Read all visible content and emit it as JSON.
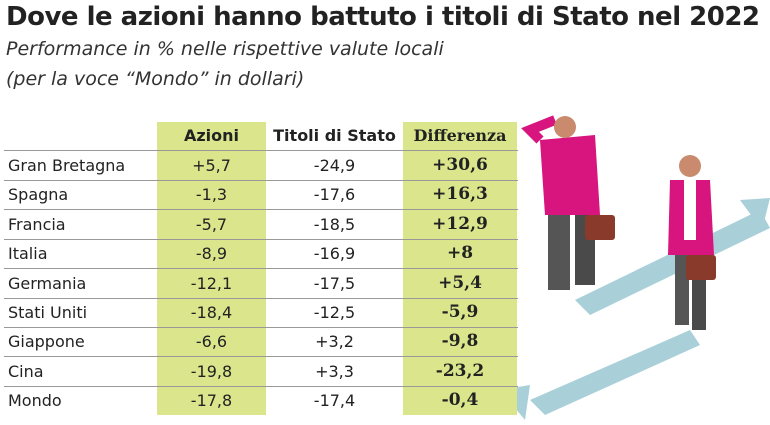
{
  "header": {
    "title": "Dove le azioni hanno battuto i titoli di Stato nel 2022",
    "subtitle_lines": [
      "Performance in % nelle rispettive valute locali",
      "(per la voce “Mondo” in dollari)"
    ]
  },
  "table": {
    "columns": [
      "Azioni",
      "Titoli di Stato",
      "Differenza"
    ],
    "rows": [
      [
        "Gran Bretagna",
        "+5,7",
        "-24,9",
        "+30,6"
      ],
      [
        "Spagna",
        "-1,3",
        "-17,6",
        "+16,3"
      ],
      [
        "Francia",
        "-5,7",
        "-18,5",
        "+12,9"
      ],
      [
        "Italia",
        "-8,9",
        "-16,9",
        "+8"
      ],
      [
        "Germania",
        "-12,1",
        "-17,5",
        "+5,4"
      ],
      [
        "Stati Uniti",
        "-18,4",
        "-12,5",
        "-5,9"
      ],
      [
        "Giappone",
        "-6,6",
        "+3,2",
        "-9,8"
      ],
      [
        "Cina",
        "-19,8",
        "+3,3",
        "-23,2"
      ],
      [
        "Mondo",
        "-17,8",
        "-17,4",
        "-0,4"
      ]
    ]
  }
}
